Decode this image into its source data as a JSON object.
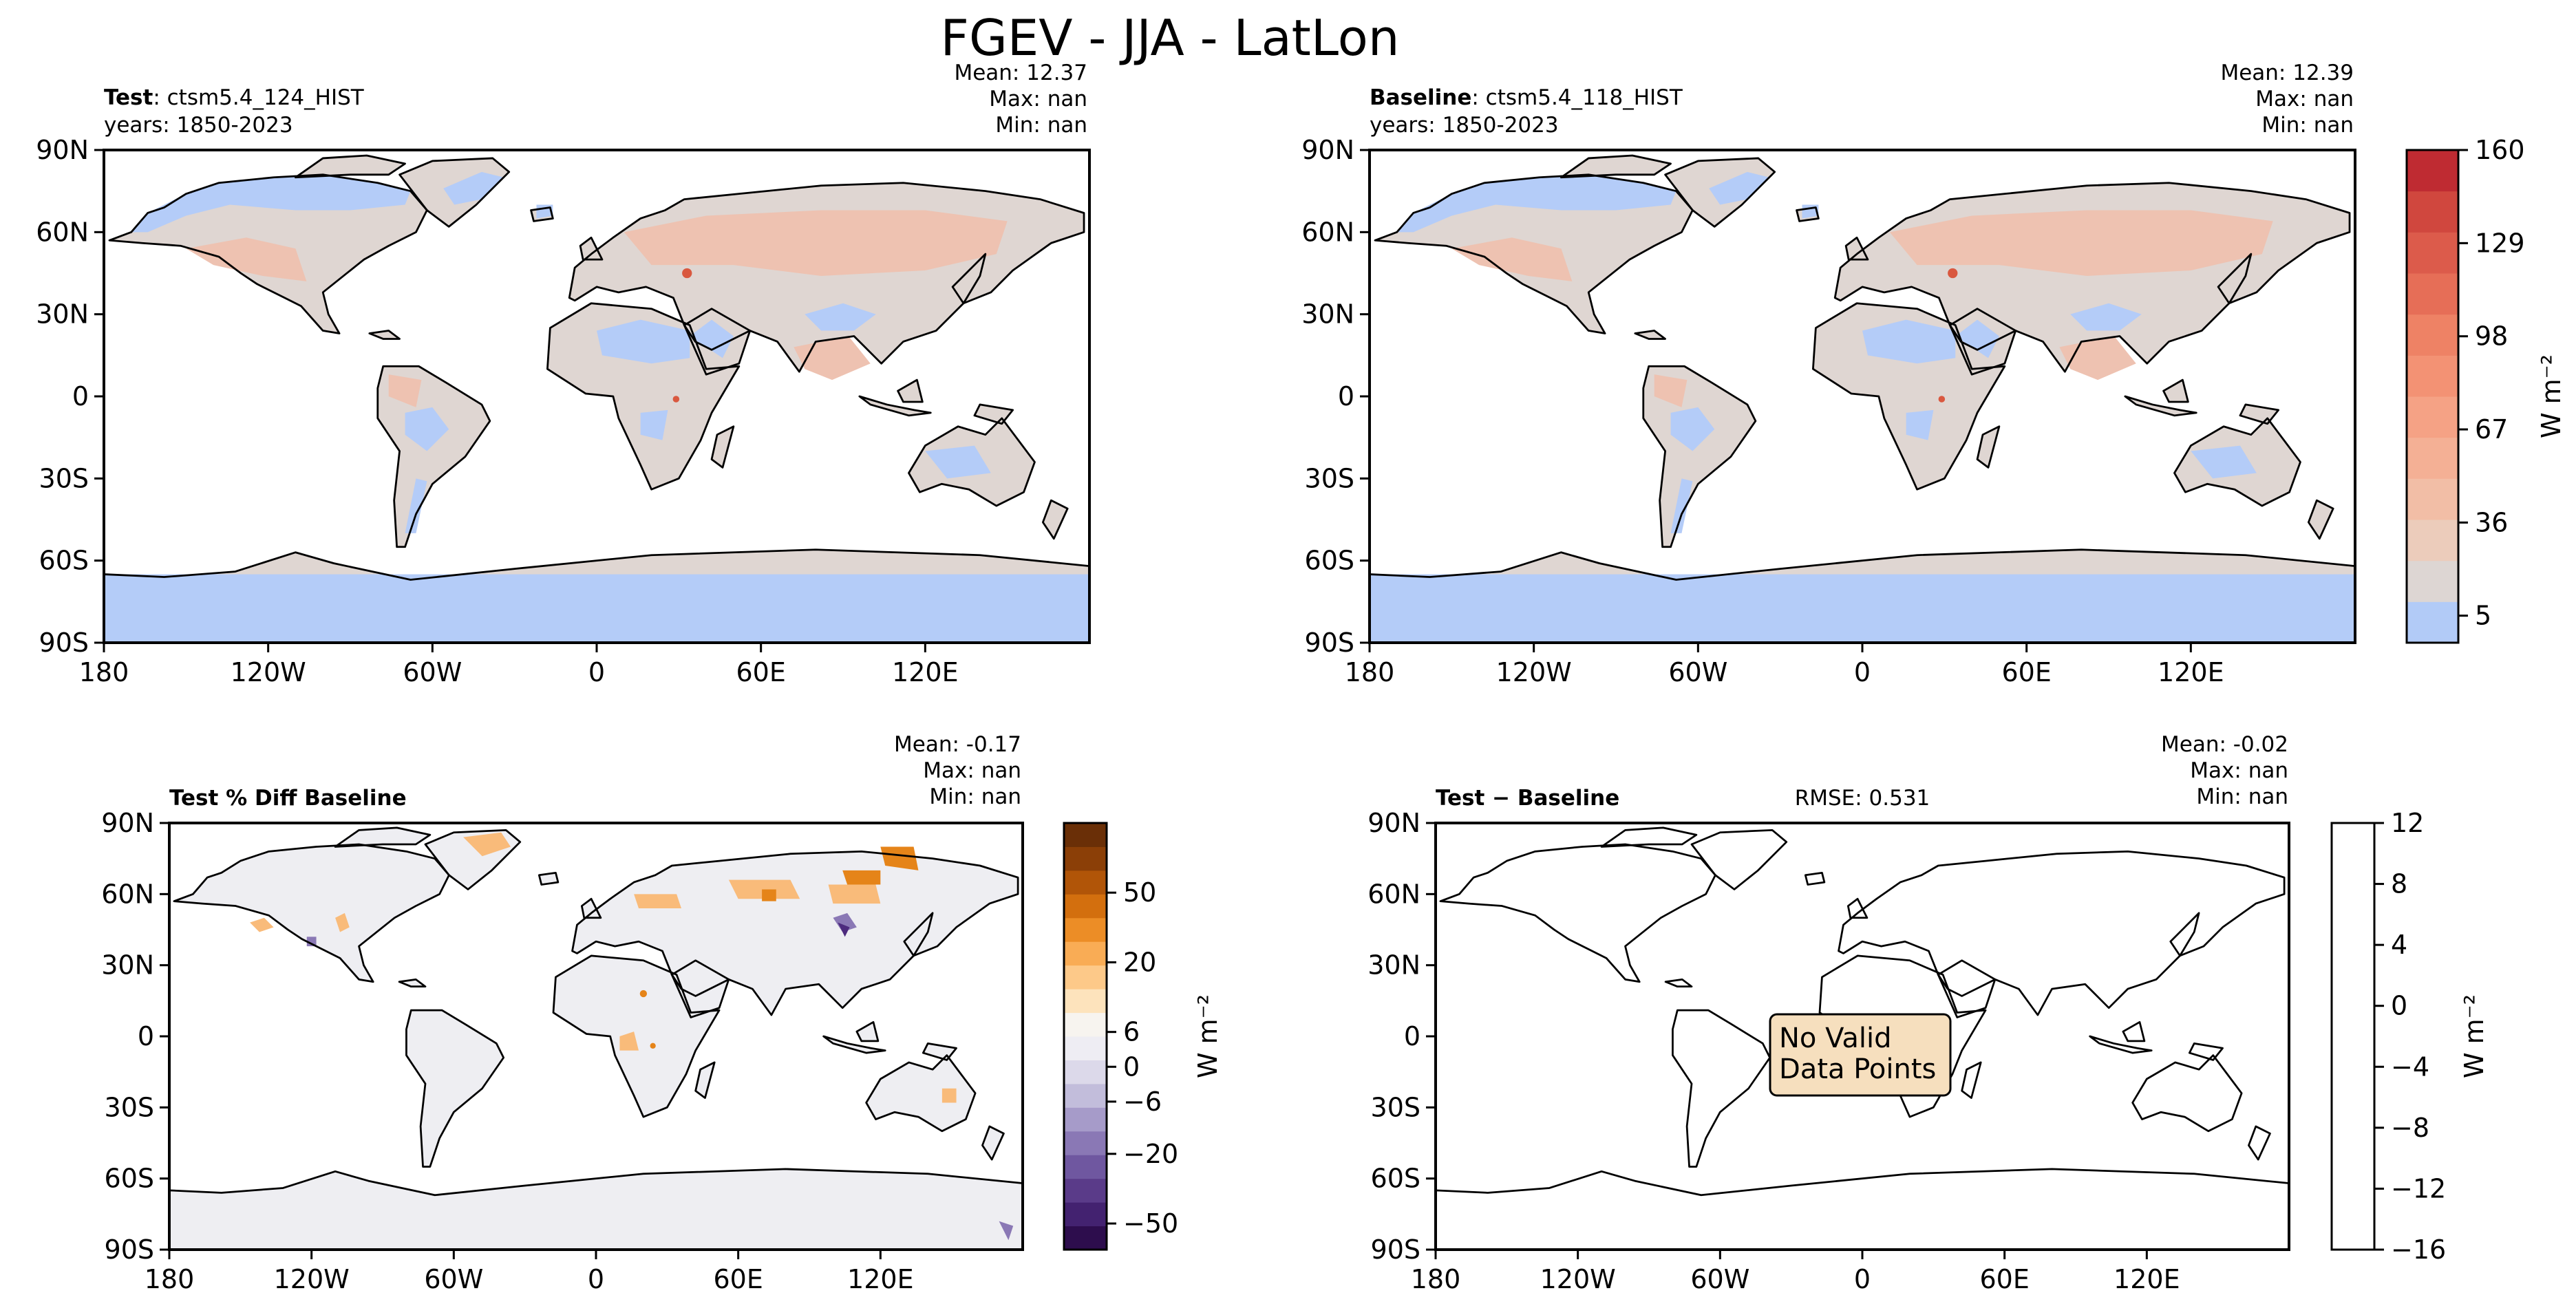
{
  "figure_title": "FGEV - JJA - LatLon",
  "x_ticks": [
    "180",
    "120W",
    "60W",
    "0",
    "60E",
    "120E"
  ],
  "y_ticks": [
    "90N",
    "60N",
    "30N",
    "0",
    "30S",
    "60S",
    "90S"
  ],
  "stats_labels": {
    "mean": "Mean:",
    "max": "Max:",
    "min": "Min:"
  },
  "panels": {
    "test": {
      "label_bold": "Test",
      "label_rest": ": ctsm5.4_124_HIST",
      "years": "years: 1850-2023",
      "mean": "12.37",
      "max": "nan",
      "min": "nan"
    },
    "baseline": {
      "label_bold": "Baseline",
      "label_rest": ": ctsm5.4_118_HIST",
      "years": "years: 1850-2023",
      "mean": "12.39",
      "max": "nan",
      "min": "nan"
    },
    "pctdiff": {
      "label_bold": "Test % Diff Baseline",
      "mean": "-0.17",
      "max": "nan",
      "min": "nan"
    },
    "diff": {
      "label_bold": "Test − Baseline",
      "rmse": "RMSE: 0.531",
      "mean": "-0.02",
      "max": "nan",
      "min": "nan",
      "message_line1": "No Valid",
      "message_line2": "Data Points"
    }
  },
  "colorbars": {
    "main": {
      "unit": "W m⁻²",
      "ticks": [
        "160",
        "129",
        "98",
        "67",
        "36",
        "5"
      ],
      "colors": [
        "#b2cbf7",
        "#ddd6d3",
        "#ecccbb",
        "#f2bea6",
        "#f4b095",
        "#f5a285",
        "#f39274",
        "#ee8265",
        "#e66e57",
        "#dc5b4b",
        "#d0473e",
        "#bf2b32"
      ]
    },
    "pctdiff": {
      "unit": "W m⁻²",
      "ticks": [
        "50",
        "20",
        "6",
        "0",
        "−6",
        "−20",
        "−50"
      ],
      "colors": [
        "#2d0d4d",
        "#432270",
        "#5a3b89",
        "#6f57a0",
        "#8a78b5",
        "#a69bc9",
        "#c2bddb",
        "#dcd9ea",
        "#eeedf3",
        "#f7f4ef",
        "#fde3bc",
        "#fdc989",
        "#f9ac55",
        "#ec8d26",
        "#d36f0e",
        "#b15508",
        "#8b3f07",
        "#6a2f07"
      ]
    },
    "diff": {
      "unit": "W m⁻²",
      "ticks": [
        "12",
        "8",
        "4",
        "0",
        "−4",
        "−8",
        "−12",
        "−16"
      ]
    }
  },
  "chart_data": {
    "type": "map",
    "title": "FGEV - JJA - LatLon",
    "variable": "FGEV",
    "season": "JJA",
    "units": "W m⁻²",
    "x_range": [
      -180,
      180
    ],
    "y_range": [
      -90,
      90
    ],
    "x_ticks": [
      -180,
      -120,
      -60,
      0,
      60,
      120
    ],
    "y_ticks": [
      90,
      60,
      30,
      0,
      -30,
      -60,
      -90
    ],
    "main_colorbar_levels": [
      5,
      36,
      67,
      98,
      129,
      160
    ],
    "pctdiff_colorbar_levels": [
      -50,
      -20,
      -6,
      0,
      6,
      20,
      50
    ],
    "diff_colorbar_levels": [
      -16,
      -12,
      -8,
      -4,
      0,
      4,
      8,
      12
    ],
    "panels": [
      {
        "name": "Test",
        "case": "ctsm5.4_124_HIST",
        "years": "1850-2023",
        "mean": 12.37,
        "max": "nan",
        "min": "nan"
      },
      {
        "name": "Baseline",
        "case": "ctsm5.4_118_HIST",
        "years": "1850-2023",
        "mean": 12.39,
        "max": "nan",
        "min": "nan"
      },
      {
        "name": "Test % Diff Baseline",
        "mean": -0.17,
        "max": "nan",
        "min": "nan"
      },
      {
        "name": "Test − Baseline",
        "mean": -0.02,
        "max": "nan",
        "min": "nan",
        "rmse": 0.531
      }
    ]
  }
}
